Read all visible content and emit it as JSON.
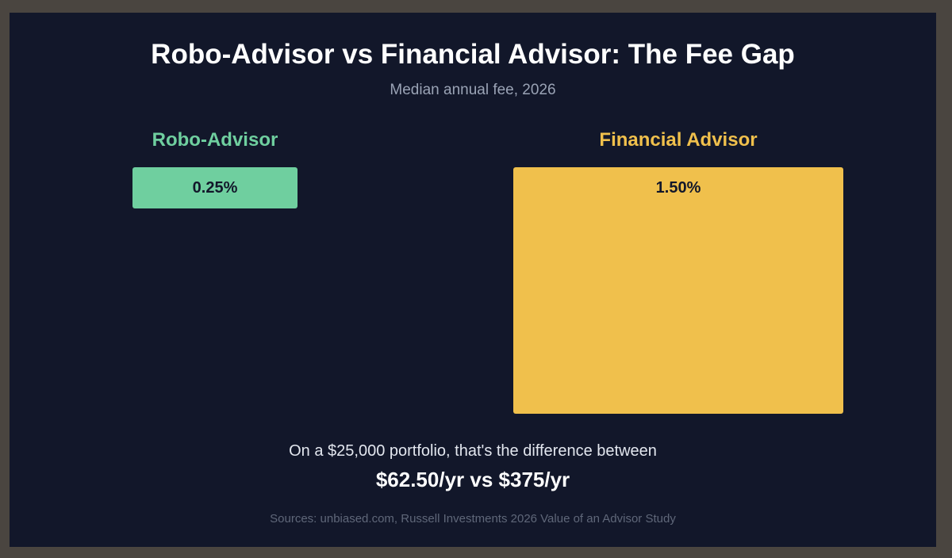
{
  "chart_data": {
    "type": "bar",
    "title": "Robo-Advisor vs Financial Advisor: The Fee Gap",
    "subtitle": "Median annual fee, 2026",
    "categories": [
      "Robo-Advisor",
      "Financial Advisor"
    ],
    "values": [
      0.25,
      1.5
    ],
    "value_labels": [
      "0.25%",
      "1.50%"
    ],
    "colors": [
      "#6fcf9f",
      "#f0c04c"
    ],
    "bar_orientation": "vertical, hanging from top",
    "grid": false,
    "legend": "none"
  },
  "summary": {
    "line": "On a $25,000 portfolio, that's the difference between",
    "highlight": "$62.50/yr vs $375/yr"
  },
  "sources": "Sources: unbiased.com, Russell Investments 2026 Value of an Advisor Study",
  "colors": {
    "background": "#12172a",
    "frame": "#4a4540"
  }
}
